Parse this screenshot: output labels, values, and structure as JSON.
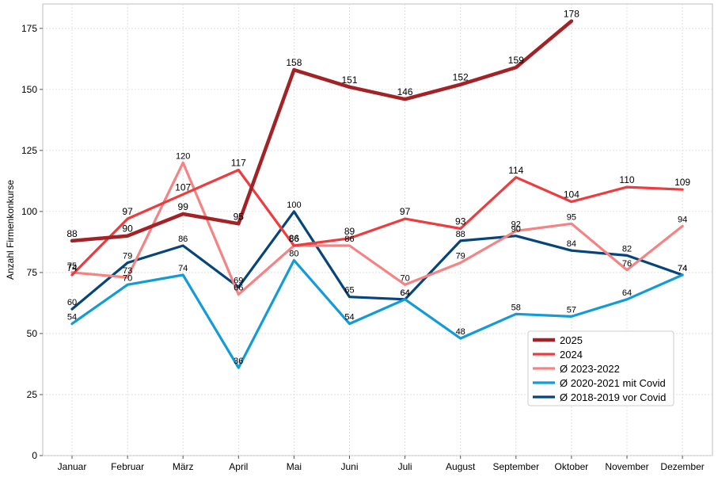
{
  "chart_data": {
    "type": "line",
    "title": "",
    "xlabel": "",
    "ylabel": "Anzahl Firmenkonkurse",
    "ylim": [
      0,
      185
    ],
    "yticks": [
      0,
      25,
      50,
      75,
      100,
      125,
      150,
      175
    ],
    "grid": true,
    "legend_position": "lower-right",
    "categories": [
      "Januar",
      "Februar",
      "März",
      "April",
      "Mai",
      "Juni",
      "Juli",
      "August",
      "September",
      "Oktober",
      "November",
      "Dezember"
    ],
    "series": [
      {
        "name": "2025",
        "color": "#a32226",
        "values": [
          88,
          90,
          99,
          95,
          158,
          151,
          146,
          152,
          159,
          178,
          null,
          null
        ]
      },
      {
        "name": "2024",
        "color": "#ed3b3e",
        "values": [
          74,
          97,
          107,
          117,
          86,
          89,
          97,
          93,
          114,
          104,
          110,
          109
        ]
      },
      {
        "name": "Ø 2023-2022",
        "color": "#f58383",
        "values": [
          75,
          73,
          120,
          66,
          86,
          86,
          70,
          79,
          92,
          95,
          76,
          94
        ]
      },
      {
        "name": "Ø 2020-2021 mit Covid",
        "color": "#139bd8",
        "values": [
          54,
          70,
          74,
          36,
          80,
          54,
          64,
          48,
          58,
          57,
          64,
          74
        ]
      },
      {
        "name": "Ø 2018-2019 vor Covid",
        "color": "#06457b",
        "values": [
          60,
          79,
          86,
          69,
          100,
          65,
          64,
          88,
          90,
          84,
          82,
          74
        ]
      }
    ]
  }
}
